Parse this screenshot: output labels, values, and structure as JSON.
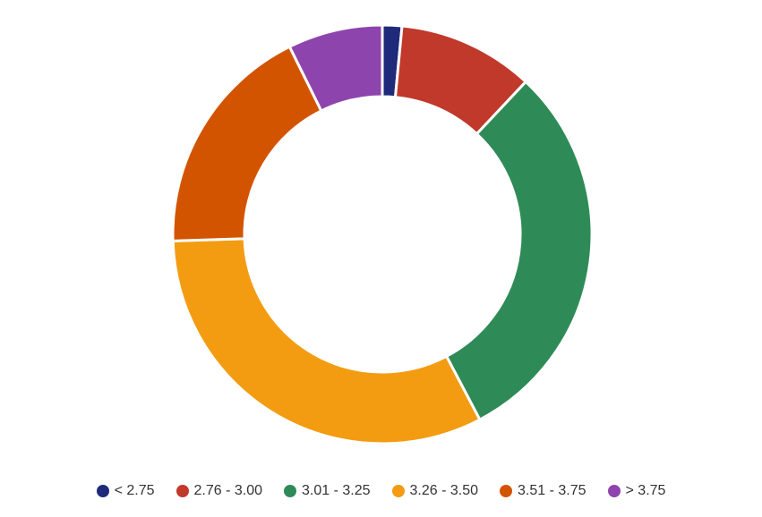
{
  "chart_data": {
    "type": "pie",
    "variant": "donut",
    "title": "",
    "labels": [
      "< 2.75",
      "2.76 - 3.00",
      "3.01 - 3.25",
      "3.26 - 3.50",
      "3.51 - 3.75",
      "> 3.75"
    ],
    "values": [
      1.5,
      10.5,
      30.3,
      32.2,
      18.2,
      7.3
    ],
    "value_unit": "percent",
    "colors": [
      "#1f2a7a",
      "#c0392b",
      "#2e8b57",
      "#f39c12",
      "#d35400",
      "#8e44ad"
    ],
    "legend_position": "bottom",
    "start_angle_deg": 0,
    "direction": "clockwise"
  }
}
